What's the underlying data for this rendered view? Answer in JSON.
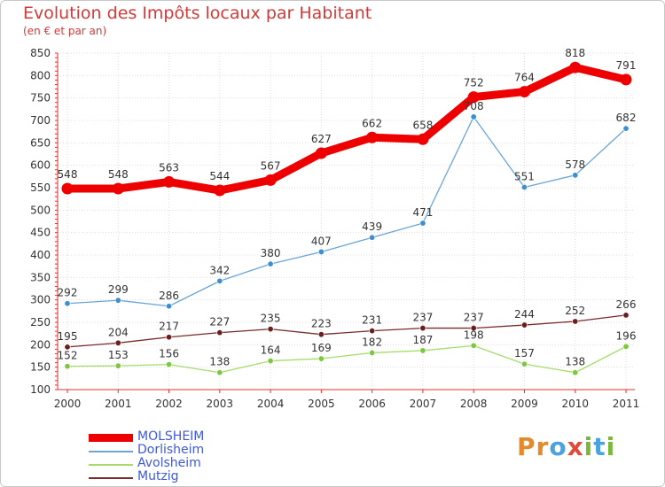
{
  "header": {
    "title": "Evolution des Impôts locaux par Habitant",
    "subtitle": "(en € et par an)"
  },
  "brand": {
    "letters": [
      "P",
      "r",
      "o",
      "x",
      "i",
      "t",
      "i"
    ],
    "colors": [
      "#e58a2a",
      "#e58a2a",
      "#4aa3df",
      "#e04a3a",
      "#7ab83a",
      "#4aa3df",
      "#7ab83a"
    ]
  },
  "chart_data": {
    "type": "line",
    "title": "Evolution des Impôts locaux par Habitant",
    "subtitle": "(en € et par an)",
    "xlabel": "",
    "ylabel": "",
    "ylim": [
      100,
      850
    ],
    "yticks": [
      100,
      150,
      200,
      250,
      300,
      350,
      400,
      450,
      500,
      550,
      600,
      650,
      700,
      750,
      800,
      850
    ],
    "grid": true,
    "x": [
      "2000",
      "2001",
      "2002",
      "2003",
      "2004",
      "2005",
      "2006",
      "2007",
      "2008",
      "2009",
      "2010",
      "2011"
    ],
    "series": [
      {
        "name": "MOLSHEIM",
        "color": "#ee0000",
        "values": [
          548,
          548,
          563,
          544,
          567,
          627,
          662,
          658,
          752,
          764,
          818,
          791
        ]
      },
      {
        "name": "Dorlisheim",
        "color": "#6aa5d8",
        "marker": "#3d8fd0",
        "values": [
          292,
          299,
          286,
          342,
          380,
          407,
          439,
          471,
          708,
          551,
          578,
          682
        ]
      },
      {
        "name": "Avolsheim",
        "color": "#a6dc6a",
        "marker": "#7cc93e",
        "values": [
          152,
          153,
          156,
          138,
          164,
          169,
          182,
          187,
          198,
          157,
          138,
          196
        ]
      },
      {
        "name": "Mutzig",
        "color": "#7a2a2a",
        "marker": "#6a1e1e",
        "values": [
          195,
          204,
          217,
          227,
          235,
          223,
          231,
          237,
          237,
          244,
          252,
          266
        ]
      }
    ],
    "legend_position": "bottom-left"
  }
}
